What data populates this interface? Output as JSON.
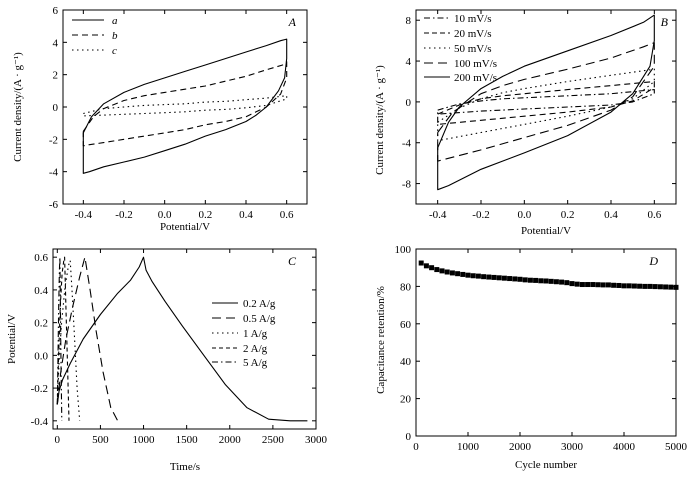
{
  "chart_data": [
    {
      "panel": "A",
      "type": "line",
      "title": "",
      "xlabel": "Potential/V",
      "ylabel": "Current density/(A · g⁻¹)",
      "xlim": [
        -0.5,
        0.7
      ],
      "ylim": [
        -6,
        6
      ],
      "xticks": [
        -0.4,
        -0.2,
        0.0,
        0.2,
        0.4,
        0.6
      ],
      "yticks": [
        -6,
        -4,
        -2,
        0,
        2,
        4,
        6
      ],
      "xtick_labels": [
        "-0.4",
        "-0.2",
        "0.0",
        "0.2",
        "0.4",
        "0.6"
      ],
      "ytick_labels": [
        "-6",
        "-4",
        "-2",
        "0",
        "2",
        "4",
        "6"
      ],
      "legend_position": "top-left",
      "series": [
        {
          "name": "a",
          "dash": "solid",
          "x": [
            -0.4,
            -0.36,
            -0.3,
            -0.2,
            -0.1,
            0.0,
            0.1,
            0.2,
            0.3,
            0.4,
            0.5,
            0.57,
            0.6,
            0.6,
            0.59,
            0.56,
            0.5,
            0.45,
            0.4,
            0.3,
            0.2,
            0.1,
            0.0,
            -0.1,
            -0.2,
            -0.3,
            -0.37,
            -0.4,
            -0.4
          ],
          "y": [
            -1.6,
            -0.6,
            0.2,
            0.9,
            1.4,
            1.8,
            2.2,
            2.6,
            3.0,
            3.4,
            3.8,
            4.1,
            4.2,
            3.0,
            1.8,
            1.0,
            0.0,
            -0.5,
            -0.9,
            -1.4,
            -1.8,
            -2.3,
            -2.7,
            -3.1,
            -3.4,
            -3.7,
            -4.0,
            -4.1,
            -1.6
          ]
        },
        {
          "name": "b",
          "dash": "dash",
          "x": [
            -0.4,
            -0.35,
            -0.3,
            -0.2,
            -0.1,
            0.0,
            0.1,
            0.2,
            0.3,
            0.4,
            0.5,
            0.58,
            0.6,
            0.6,
            0.57,
            0.5,
            0.45,
            0.4,
            0.3,
            0.2,
            0.1,
            0.0,
            -0.1,
            -0.2,
            -0.3,
            -0.38,
            -0.4,
            -0.4
          ],
          "y": [
            -1.5,
            -0.6,
            -0.1,
            0.4,
            0.7,
            0.9,
            1.1,
            1.3,
            1.6,
            1.9,
            2.3,
            2.6,
            2.8,
            1.8,
            0.8,
            0.0,
            -0.3,
            -0.6,
            -0.9,
            -1.1,
            -1.4,
            -1.6,
            -1.8,
            -2.0,
            -2.2,
            -2.35,
            -2.4,
            -1.5
          ]
        },
        {
          "name": "c",
          "dash": "dot",
          "x": [
            -0.4,
            -0.3,
            -0.2,
            -0.1,
            0.0,
            0.1,
            0.2,
            0.3,
            0.4,
            0.5,
            0.6,
            0.6,
            0.5,
            0.4,
            0.3,
            0.2,
            0.1,
            0.0,
            -0.1,
            -0.2,
            -0.3,
            -0.4,
            -0.4
          ],
          "y": [
            -0.4,
            -0.1,
            0.0,
            0.1,
            0.15,
            0.2,
            0.3,
            0.35,
            0.45,
            0.55,
            0.7,
            0.5,
            0.1,
            -0.05,
            -0.15,
            -0.2,
            -0.3,
            -0.35,
            -0.4,
            -0.45,
            -0.5,
            -0.55,
            -0.4
          ]
        }
      ]
    },
    {
      "panel": "B",
      "type": "line",
      "title": "",
      "xlabel": "Potential/V",
      "ylabel": "Current density/(A · g⁻¹)",
      "xlim": [
        -0.5,
        0.7
      ],
      "ylim": [
        -10,
        9
      ],
      "xticks": [
        -0.4,
        -0.2,
        0.0,
        0.2,
        0.4,
        0.6
      ],
      "yticks": [
        -8,
        -4,
        0,
        4,
        8
      ],
      "xtick_labels": [
        "-0.4",
        "-0.2",
        "0.0",
        "0.2",
        "0.4",
        "0.6"
      ],
      "ytick_labels": [
        "-8",
        "-4",
        "0",
        "4",
        "8"
      ],
      "legend_position": "top-left",
      "series": [
        {
          "name": "10 mV/s",
          "dash": "dashdot",
          "x": [
            -0.4,
            -0.3,
            -0.2,
            -0.1,
            0.0,
            0.2,
            0.4,
            0.6,
            0.6,
            0.5,
            0.4,
            0.2,
            0.0,
            -0.2,
            -0.4,
            -0.4
          ],
          "y": [
            -0.8,
            -0.2,
            0.1,
            0.3,
            0.4,
            0.6,
            0.8,
            1.2,
            0.8,
            0.0,
            -0.3,
            -0.5,
            -0.7,
            -0.9,
            -1.2,
            -0.8
          ]
        },
        {
          "name": "20 mV/s",
          "dash": "dash",
          "x": [
            -0.4,
            -0.3,
            -0.2,
            -0.1,
            0.0,
            0.2,
            0.4,
            0.6,
            0.6,
            0.5,
            0.4,
            0.2,
            0.0,
            -0.2,
            -0.4,
            -0.4
          ],
          "y": [
            -1.2,
            -0.3,
            0.3,
            0.6,
            0.8,
            1.2,
            1.6,
            2.0,
            1.4,
            0.1,
            -0.5,
            -1.0,
            -1.4,
            -1.8,
            -2.2,
            -1.2
          ]
        },
        {
          "name": "50 mV/s",
          "dash": "dot",
          "x": [
            -0.4,
            -0.3,
            -0.2,
            -0.1,
            0.0,
            0.2,
            0.4,
            0.6,
            0.6,
            0.5,
            0.4,
            0.2,
            0.0,
            -0.2,
            -0.4,
            -0.4
          ],
          "y": [
            -2.0,
            -0.6,
            0.3,
            0.9,
            1.3,
            2.0,
            2.6,
            3.2,
            2.0,
            0.3,
            -0.5,
            -1.4,
            -2.2,
            -3.0,
            -3.8,
            -2.0
          ]
        },
        {
          "name": "100 mV/s",
          "dash": "longdash",
          "x": [
            -0.4,
            -0.33,
            -0.2,
            -0.1,
            0.0,
            0.2,
            0.4,
            0.55,
            0.6,
            0.6,
            0.5,
            0.4,
            0.2,
            0.0,
            -0.2,
            -0.4,
            -0.4
          ],
          "y": [
            -3.0,
            -1.0,
            0.8,
            1.6,
            2.2,
            3.2,
            4.3,
            5.4,
            5.8,
            3.5,
            0.5,
            -0.8,
            -2.3,
            -3.5,
            -4.7,
            -5.8,
            -3.0
          ]
        },
        {
          "name": "200 mV/s",
          "dash": "solid",
          "x": [
            -0.4,
            -0.35,
            -0.3,
            -0.2,
            -0.1,
            0.0,
            0.2,
            0.4,
            0.55,
            0.6,
            0.6,
            0.58,
            0.5,
            0.4,
            0.2,
            0.0,
            -0.2,
            -0.35,
            -0.4,
            -0.4
          ],
          "y": [
            -4.5,
            -2.0,
            -0.5,
            1.3,
            2.5,
            3.5,
            5.0,
            6.5,
            7.8,
            8.5,
            6.0,
            3.5,
            0.8,
            -1.0,
            -3.3,
            -5.0,
            -6.6,
            -8.2,
            -8.6,
            -4.5
          ]
        }
      ]
    },
    {
      "panel": "C",
      "type": "line",
      "title": "",
      "xlabel": "Time/s",
      "ylabel": "Potential/V",
      "xlim": [
        -50,
        3000
      ],
      "ylim": [
        -0.45,
        0.65
      ],
      "xticks": [
        0,
        500,
        1000,
        1500,
        2000,
        2500,
        3000
      ],
      "yticks": [
        -0.4,
        -0.2,
        0.0,
        0.2,
        0.4,
        0.6
      ],
      "xtick_labels": [
        "0",
        "500",
        "1000",
        "1500",
        "2000",
        "2500",
        "3000"
      ],
      "ytick_labels": [
        "-0.4",
        "-0.2",
        "0.0",
        "0.2",
        "0.4",
        "0.6"
      ],
      "legend_position": "center-right",
      "series": [
        {
          "name": "0.2 A/g",
          "dash": "solid",
          "x": [
            0,
            20,
            60,
            150,
            300,
            500,
            700,
            850,
            950,
            1000,
            1030,
            1100,
            1250,
            1450,
            1700,
            1950,
            2200,
            2450,
            2700,
            2900
          ],
          "y": [
            -0.3,
            -0.22,
            -0.15,
            -0.05,
            0.1,
            0.25,
            0.38,
            0.46,
            0.54,
            0.6,
            0.52,
            0.45,
            0.33,
            0.18,
            0.0,
            -0.18,
            -0.32,
            -0.39,
            -0.4,
            -0.4
          ]
        },
        {
          "name": "0.5 A/g",
          "dash": "longdash",
          "x": [
            0,
            40,
            100,
            180,
            260,
            320,
            380,
            450,
            530,
            620,
            700
          ],
          "y": [
            -0.3,
            -0.1,
            0.1,
            0.3,
            0.48,
            0.6,
            0.4,
            0.15,
            -0.1,
            -0.32,
            -0.4
          ]
        },
        {
          "name": "1 A/g",
          "dash": "dot",
          "x": [
            0,
            20,
            50,
            90,
            130,
            150,
            170,
            200,
            230,
            260
          ],
          "y": [
            -0.3,
            -0.05,
            0.2,
            0.42,
            0.55,
            0.58,
            0.4,
            0.1,
            -0.2,
            -0.4
          ]
        },
        {
          "name": "2 A/g",
          "dash": "dash",
          "x": [
            0,
            15,
            35,
            55,
            75,
            85,
            100,
            120,
            135
          ],
          "y": [
            -0.3,
            0.0,
            0.3,
            0.5,
            0.58,
            0.6,
            0.3,
            -0.1,
            -0.4
          ]
        },
        {
          "name": "5 A/g",
          "dash": "dashdot",
          "x": [
            0,
            8,
            16,
            24,
            30,
            36,
            44,
            52
          ],
          "y": [
            -0.3,
            0.0,
            0.3,
            0.52,
            0.6,
            0.3,
            -0.1,
            -0.4
          ]
        }
      ]
    },
    {
      "panel": "D",
      "type": "scatter",
      "title": "",
      "xlabel": "Cycle number",
      "ylabel": "Capacitance retention/%",
      "xlim": [
        0,
        5000
      ],
      "ylim": [
        0,
        100
      ],
      "xticks": [
        0,
        1000,
        2000,
        3000,
        4000,
        5000
      ],
      "yticks": [
        0,
        20,
        40,
        60,
        80,
        100
      ],
      "xtick_labels": [
        "0",
        "1000",
        "2000",
        "3000",
        "4000",
        "5000"
      ],
      "ytick_labels": [
        "0",
        "20",
        "40",
        "60",
        "80",
        "100"
      ],
      "series": [
        {
          "name": "",
          "marker": "square",
          "x": [
            100,
            200,
            300,
            400,
            500,
            600,
            700,
            800,
            900,
            1000,
            1100,
            1200,
            1300,
            1400,
            1500,
            1600,
            1700,
            1800,
            1900,
            2000,
            2100,
            2200,
            2300,
            2400,
            2500,
            2600,
            2700,
            2800,
            2900,
            3000,
            3100,
            3200,
            3300,
            3400,
            3500,
            3600,
            3700,
            3800,
            3900,
            4000,
            4100,
            4200,
            4300,
            4400,
            4500,
            4600,
            4700,
            4800,
            4900,
            5000
          ],
          "y": [
            92.5,
            91.0,
            90.0,
            89.0,
            88.3,
            87.7,
            87.2,
            86.8,
            86.4,
            86.0,
            85.7,
            85.5,
            85.2,
            85.0,
            84.8,
            84.6,
            84.4,
            84.2,
            84.0,
            83.8,
            83.5,
            83.3,
            83.2,
            83.0,
            82.9,
            82.7,
            82.5,
            82.3,
            82.0,
            81.5,
            81.2,
            81.0,
            81.0,
            81.0,
            80.9,
            80.8,
            80.8,
            80.6,
            80.5,
            80.3,
            80.3,
            80.2,
            80.1,
            80.0,
            80.0,
            79.9,
            79.8,
            79.7,
            79.6,
            79.5
          ]
        }
      ]
    }
  ],
  "panel_labels": [
    "A",
    "B",
    "C",
    "D"
  ]
}
